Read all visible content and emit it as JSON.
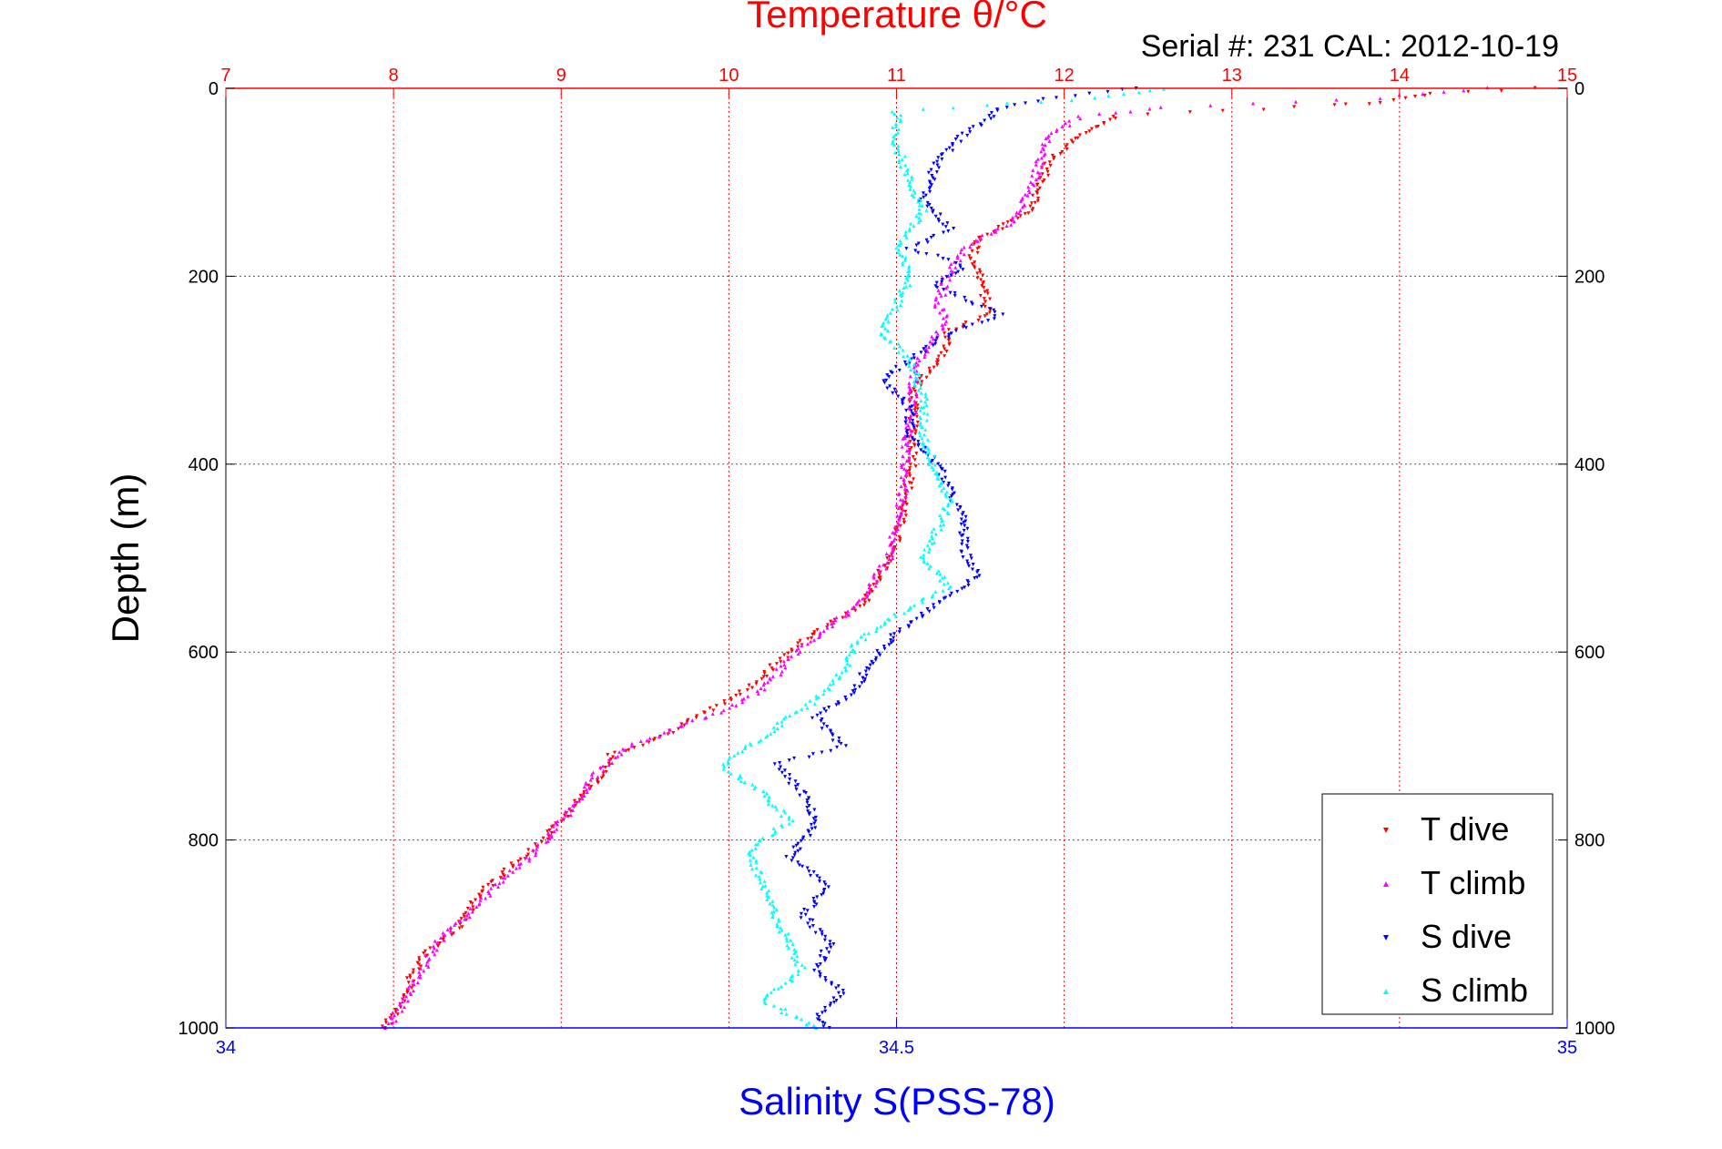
{
  "chart_data": {
    "type": "scatter",
    "title": "Temperature θ/°C",
    "subtitle": "Serial #: 231  CAL: 2012-10-19",
    "ylabel": "Depth (m)",
    "xlabel": "Salinity S(PSS-78)",
    "ylim": [
      0,
      1000
    ],
    "y_reversed": true,
    "y_ticks": [
      "0",
      "200",
      "400",
      "600",
      "800",
      "1000"
    ],
    "temp_axis": {
      "lim": [
        7,
        15
      ],
      "ticks": [
        "7",
        "8",
        "9",
        "10",
        "11",
        "12",
        "13",
        "14",
        "15"
      ],
      "color": "#ff0000"
    },
    "sal_axis": {
      "lim": [
        34,
        35
      ],
      "ticks": [
        "34",
        "34.5",
        "35"
      ],
      "color": "#0000ff"
    },
    "grid": true,
    "legend_position": "bottom-right",
    "series": [
      {
        "name": "T dive",
        "axis": "temp",
        "color": "#ff0000",
        "marker": "triangle-down",
        "points": [
          [
            14.8,
            0
          ],
          [
            14.2,
            5
          ],
          [
            13.9,
            15
          ],
          [
            13.6,
            18
          ],
          [
            12.3,
            30
          ],
          [
            12.2,
            40
          ],
          [
            12.1,
            50
          ],
          [
            11.9,
            80
          ],
          [
            11.85,
            110
          ],
          [
            11.8,
            130
          ],
          [
            11.5,
            160
          ],
          [
            11.45,
            180
          ],
          [
            11.5,
            200
          ],
          [
            11.55,
            240
          ],
          [
            11.3,
            260
          ],
          [
            11.3,
            280
          ],
          [
            11.1,
            320
          ],
          [
            11.1,
            360
          ],
          [
            11.1,
            400
          ],
          [
            11.05,
            440
          ],
          [
            11.0,
            480
          ],
          [
            10.9,
            520
          ],
          [
            10.8,
            550
          ],
          [
            10.5,
            580
          ],
          [
            10.3,
            610
          ],
          [
            10.1,
            640
          ],
          [
            9.8,
            670
          ],
          [
            9.6,
            690
          ],
          [
            9.3,
            710
          ],
          [
            9.2,
            740
          ],
          [
            9.0,
            780
          ],
          [
            8.9,
            800
          ],
          [
            8.7,
            830
          ],
          [
            8.5,
            860
          ],
          [
            8.4,
            890
          ],
          [
            8.2,
            920
          ],
          [
            8.1,
            950
          ],
          [
            8.05,
            970
          ],
          [
            7.95,
            1000
          ]
        ]
      },
      {
        "name": "T climb",
        "axis": "temp",
        "color": "#ff00ff",
        "marker": "triangle-up",
        "points": [
          [
            14.5,
            0
          ],
          [
            13.9,
            10
          ],
          [
            12.6,
            20
          ],
          [
            12.1,
            30
          ],
          [
            11.9,
            50
          ],
          [
            11.85,
            80
          ],
          [
            11.8,
            110
          ],
          [
            11.7,
            140
          ],
          [
            11.4,
            170
          ],
          [
            11.3,
            200
          ],
          [
            11.25,
            230
          ],
          [
            11.3,
            250
          ],
          [
            11.2,
            270
          ],
          [
            11.1,
            300
          ],
          [
            11.1,
            340
          ],
          [
            11.05,
            380
          ],
          [
            11.05,
            420
          ],
          [
            11.0,
            460
          ],
          [
            10.95,
            500
          ],
          [
            10.85,
            530
          ],
          [
            10.7,
            560
          ],
          [
            10.4,
            600
          ],
          [
            10.2,
            640
          ],
          [
            10.0,
            660
          ],
          [
            9.7,
            680
          ],
          [
            9.4,
            700
          ],
          [
            9.2,
            730
          ],
          [
            9.1,
            760
          ],
          [
            8.95,
            790
          ],
          [
            8.8,
            820
          ],
          [
            8.6,
            850
          ],
          [
            8.45,
            880
          ],
          [
            8.25,
            910
          ],
          [
            8.2,
            930
          ],
          [
            8.1,
            960
          ],
          [
            8.0,
            990
          ],
          [
            7.95,
            1000
          ]
        ]
      },
      {
        "name": "S dive",
        "axis": "sal",
        "color": "#0000ff",
        "marker": "triangle-down",
        "points": [
          [
            34.68,
            0
          ],
          [
            34.62,
            10
          ],
          [
            34.58,
            20
          ],
          [
            34.55,
            50
          ],
          [
            34.53,
            80
          ],
          [
            34.52,
            120
          ],
          [
            34.54,
            150
          ],
          [
            34.51,
            170
          ],
          [
            34.55,
            190
          ],
          [
            34.53,
            210
          ],
          [
            34.56,
            230
          ],
          [
            34.58,
            240
          ],
          [
            34.54,
            260
          ],
          [
            34.52,
            280
          ],
          [
            34.49,
            310
          ],
          [
            34.51,
            340
          ],
          [
            34.51,
            370
          ],
          [
            34.53,
            400
          ],
          [
            34.54,
            430
          ],
          [
            34.55,
            460
          ],
          [
            34.55,
            490
          ],
          [
            34.56,
            520
          ],
          [
            34.53,
            550
          ],
          [
            34.5,
            580
          ],
          [
            34.48,
            610
          ],
          [
            34.47,
            640
          ],
          [
            34.44,
            670
          ],
          [
            34.46,
            700
          ],
          [
            34.41,
            720
          ],
          [
            34.43,
            750
          ],
          [
            34.44,
            780
          ],
          [
            34.42,
            820
          ],
          [
            34.45,
            850
          ],
          [
            34.43,
            880
          ],
          [
            34.45,
            910
          ],
          [
            34.44,
            940
          ],
          [
            34.46,
            960
          ],
          [
            34.44,
            990
          ],
          [
            34.45,
            1000
          ]
        ]
      },
      {
        "name": "S climb",
        "axis": "sal",
        "color": "#00ffff",
        "marker": "triangle-up",
        "points": [
          [
            34.7,
            0
          ],
          [
            34.65,
            10
          ],
          [
            34.5,
            25
          ],
          [
            34.5,
            60
          ],
          [
            34.51,
            100
          ],
          [
            34.52,
            130
          ],
          [
            34.5,
            170
          ],
          [
            34.51,
            200
          ],
          [
            34.5,
            230
          ],
          [
            34.49,
            260
          ],
          [
            34.51,
            290
          ],
          [
            34.52,
            330
          ],
          [
            34.52,
            370
          ],
          [
            34.53,
            410
          ],
          [
            34.54,
            440
          ],
          [
            34.53,
            470
          ],
          [
            34.52,
            500
          ],
          [
            34.54,
            530
          ],
          [
            34.5,
            560
          ],
          [
            34.47,
            590
          ],
          [
            34.46,
            620
          ],
          [
            34.44,
            650
          ],
          [
            34.41,
            680
          ],
          [
            34.37,
            720
          ],
          [
            34.4,
            750
          ],
          [
            34.42,
            780
          ],
          [
            34.39,
            810
          ],
          [
            34.4,
            850
          ],
          [
            34.41,
            880
          ],
          [
            34.42,
            910
          ],
          [
            34.43,
            940
          ],
          [
            34.4,
            970
          ],
          [
            34.44,
            1000
          ]
        ]
      }
    ]
  }
}
